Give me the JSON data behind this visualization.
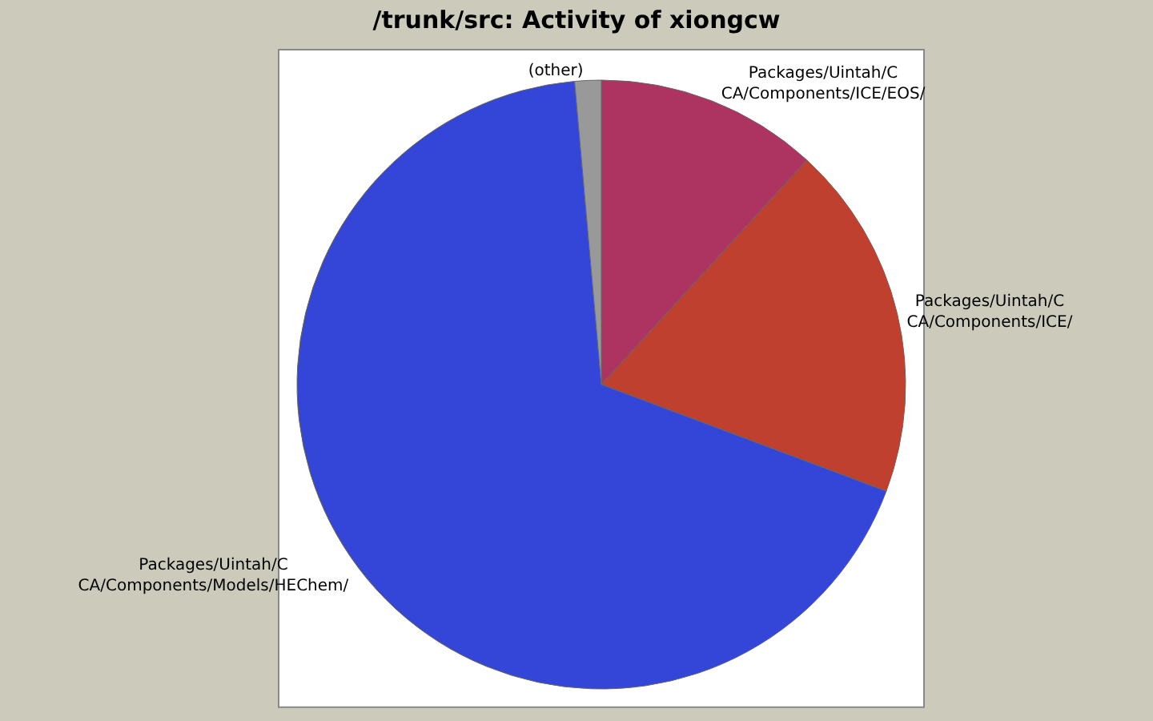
{
  "chart_data": {
    "type": "pie",
    "title": "/trunk/src: Activity of xiongcw",
    "categories": [
      "Packages/Uintah/C\nCA/Components/ICE/EOS/",
      "Packages/Uintah/C\nCA/Components/ICE/",
      "Packages/Uintah/C\nCA/Components/Models/HEChem/",
      "(other)"
    ],
    "values": [
      11.8,
      18.9,
      67.9,
      1.4
    ],
    "colors": [
      "#ad3360",
      "#c04030",
      "#3346d8",
      "#999999"
    ],
    "legend": false
  }
}
